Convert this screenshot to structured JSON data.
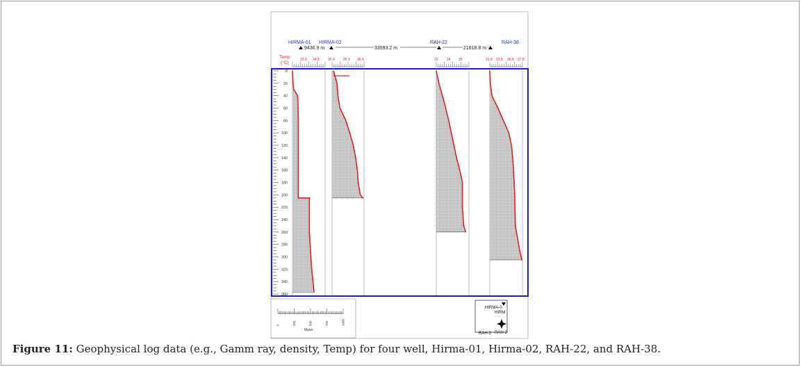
{
  "figure": {
    "caption_label": "Figure 11:",
    "caption_text": "Geophysical log data (e.g., Gamm ray, density, Temp) for four well, Hirma-01, Hirma-02, RAH-22, and RAH-38.",
    "header": {
      "wells": [
        "HIRMA-01",
        "HIRMA-02",
        "RAH-22",
        "RAH-38"
      ],
      "distances": [
        "9436.9 m",
        "33593.2 m",
        "21618.8 m"
      ],
      "temp_label": "Temp",
      "temp_unit": "(°C)",
      "temp_ticks": [
        [
          "32.0",
          "34.8"
        ],
        [
          "35.4",
          "35.9",
          "36.4"
        ],
        [
          "33",
          "34",
          "35"
        ],
        [
          "31.8",
          "33.8",
          "35.8",
          "37.8"
        ]
      ]
    },
    "scale_bar": {
      "ticks": [
        "0",
        "250",
        "500",
        "750",
        "1000"
      ],
      "unit": "Meter"
    },
    "inset_map": {
      "labels": [
        "HIRMA-0",
        "HIRM",
        "RAH-3",
        "RAH-2"
      ]
    },
    "colors": {
      "curve": "#e0201c",
      "border": "#1a1adb",
      "label": "#2233cc",
      "fill": "#c8c8c8"
    }
  },
  "chart_data": {
    "type": "line",
    "ylabel": "",
    "ylim": [
      0,
      360
    ],
    "y_reversed": true,
    "depth_ticks": [
      0,
      20,
      40,
      60,
      80,
      100,
      120,
      140,
      160,
      180,
      200,
      220,
      240,
      260,
      280,
      300,
      320,
      340,
      360
    ],
    "series": [
      {
        "name": "HIRMA-01",
        "xlim": [
          32.0,
          37.6
        ],
        "x": [
          32.0,
          32.1,
          32.2,
          32.9,
          33.0,
          33.0,
          34.9,
          34.9,
          35.3,
          35.7
        ],
        "y": [
          0,
          20,
          30,
          40,
          80,
          205,
          205,
          260,
          320,
          357
        ]
      },
      {
        "name": "HIRMA-02",
        "xlim": [
          35.35,
          36.45
        ],
        "x": [
          35.4,
          35.52,
          35.55,
          35.62,
          35.82,
          35.96,
          36.08,
          36.16,
          36.22,
          36.25,
          36.32,
          36.42
        ],
        "y": [
          0,
          20,
          40,
          60,
          80,
          100,
          120,
          140,
          160,
          180,
          200,
          205
        ]
      },
      {
        "name": "RAH-22",
        "xlim": [
          33.0,
          35.5
        ],
        "x": [
          33.0,
          33.2,
          33.6,
          33.95,
          34.25,
          34.55,
          34.8,
          34.95,
          35.0,
          35.0,
          35.1,
          35.25
        ],
        "y": [
          0,
          20,
          50,
          80,
          110,
          140,
          160,
          175,
          180,
          220,
          250,
          260
        ]
      },
      {
        "name": "RAH-38",
        "xlim": [
          31.8,
          37.8
        ],
        "x": [
          31.8,
          31.9,
          32.2,
          33.3,
          34.3,
          35.3,
          35.8,
          36.1,
          36.4,
          36.5,
          36.9,
          37.3,
          37.7
        ],
        "y": [
          0,
          20,
          40,
          60,
          80,
          100,
          120,
          150,
          200,
          250,
          270,
          290,
          305
        ]
      }
    ]
  }
}
